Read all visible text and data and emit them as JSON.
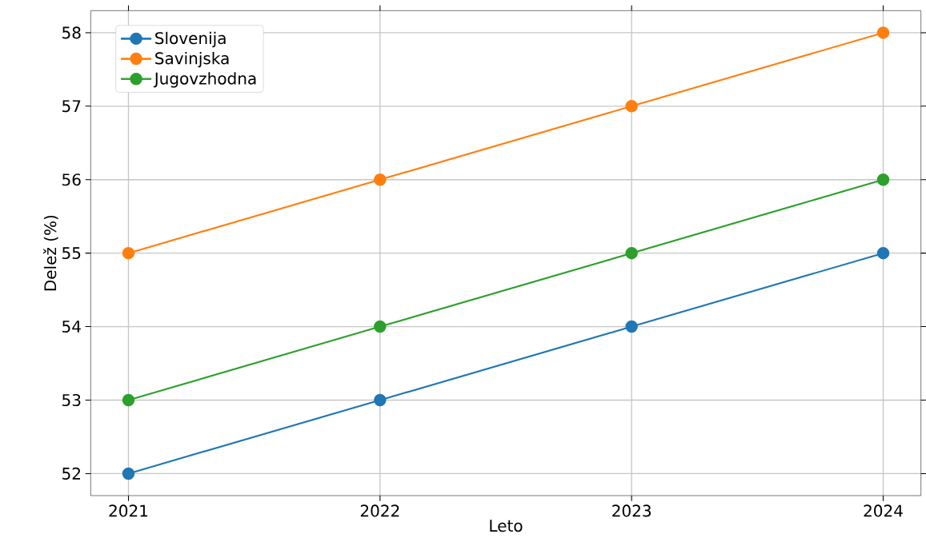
{
  "chart_data": {
    "type": "line",
    "xlabel": "Leto",
    "ylabel": "Delež (%)",
    "x": [
      2021,
      2022,
      2023,
      2024
    ],
    "series": [
      {
        "name": "Slovenija",
        "color": "#1f77b4",
        "values": [
          52,
          53,
          54,
          55
        ]
      },
      {
        "name": "Savinjska",
        "color": "#ff7f0e",
        "values": [
          55,
          56,
          57,
          58
        ]
      },
      {
        "name": "Jugovzhodna",
        "color": "#2ca02c",
        "values": [
          53,
          54,
          55,
          56
        ]
      }
    ],
    "xlim": [
      2020.85,
      2024.15
    ],
    "ylim": [
      51.7,
      58.3
    ],
    "xticks": [
      2021,
      2022,
      2023,
      2024
    ],
    "yticks": [
      52,
      53,
      54,
      55,
      56,
      57,
      58
    ],
    "grid": true,
    "legend": "top left",
    "marker": "circle",
    "line_style": "solid"
  }
}
